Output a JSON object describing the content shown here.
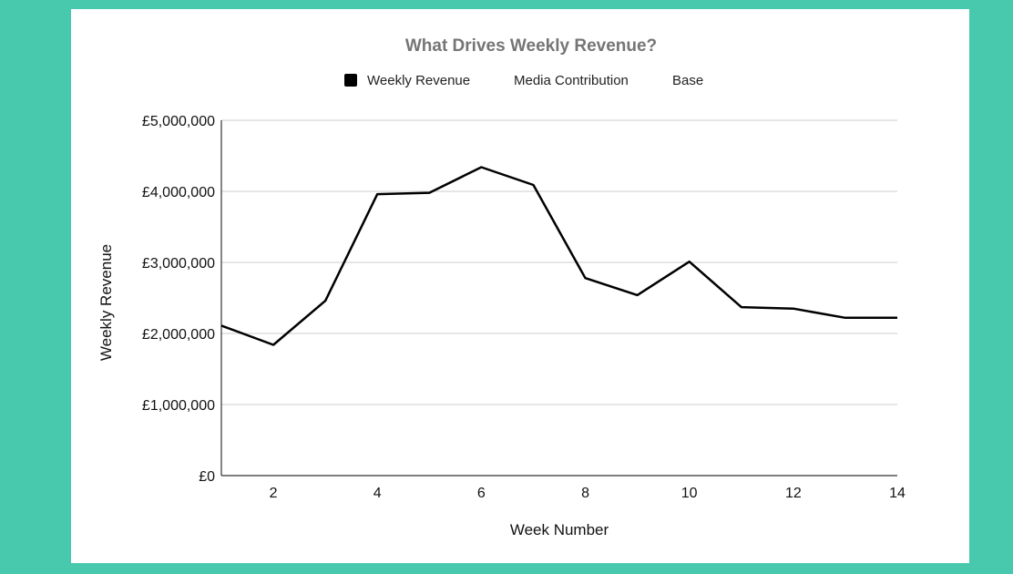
{
  "chart_data": {
    "type": "line",
    "title": "What Drives Weekly Revenue?",
    "xlabel": "Week Number",
    "ylabel": "Weekly Revenue",
    "ylim": [
      0,
      5000000
    ],
    "xlim": [
      1,
      14
    ],
    "x_ticks": [
      2,
      4,
      6,
      8,
      10,
      12,
      14
    ],
    "y_ticks": [
      0,
      1000000,
      2000000,
      3000000,
      4000000,
      5000000
    ],
    "y_tick_labels": [
      "£0",
      "£1,000,000",
      "£2,000,000",
      "£3,000,000",
      "£4,000,000",
      "£5,000,000"
    ],
    "grid": true,
    "legend_position": "top",
    "legend": [
      {
        "name": "Weekly Revenue",
        "color": "#000000",
        "swatch": true
      },
      {
        "name": "Media Contribution",
        "swatch": false
      },
      {
        "name": "Base",
        "swatch": false
      }
    ],
    "x": [
      1,
      2,
      3,
      4,
      5,
      6,
      7,
      8,
      9,
      10,
      11,
      12,
      13,
      14
    ],
    "series": [
      {
        "name": "Weekly Revenue",
        "color": "#000000",
        "values": [
          2110000,
          1840000,
          2460000,
          3960000,
          3980000,
          4340000,
          4090000,
          2780000,
          2540000,
          3010000,
          2370000,
          2350000,
          2220000,
          2220000
        ]
      }
    ]
  },
  "colors": {
    "background": "#48c9ad",
    "panel": "#ffffff",
    "title": "#757575",
    "grid": "#cccccc"
  }
}
